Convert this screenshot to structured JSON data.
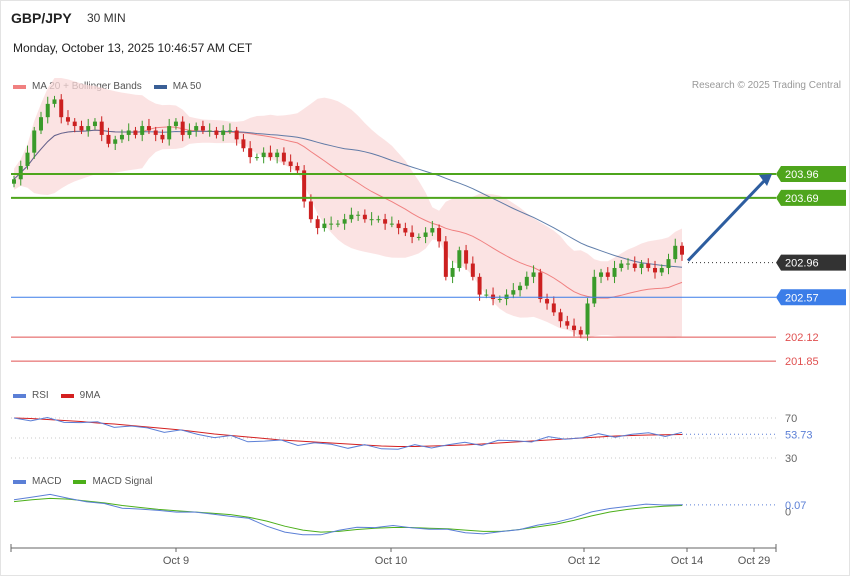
{
  "header": {
    "pair": "GBP/JPY",
    "timeframe": "30 MIN",
    "datetime": "Monday, October 13, 2025 10:46:57 AM CET",
    "credit": "Research © 2025 Trading Central"
  },
  "legends": {
    "main": [
      {
        "label": "MA 20 + Bollinger Bands",
        "color": "#f08080"
      },
      {
        "label": "MA 50",
        "color": "#3a5f96"
      }
    ],
    "rsi": [
      {
        "label": "RSI",
        "color": "#5b7fd6"
      },
      {
        "label": "9MA",
        "color": "#d42020"
      }
    ],
    "macd": [
      {
        "label": "MACD",
        "color": "#5b7fd6"
      },
      {
        "label": "MACD Signal",
        "color": "#4caf1a"
      }
    ]
  },
  "colors": {
    "resistance": "#4ea51c",
    "support": "#3b7de8",
    "red_level": "#e05050",
    "current": "#333333",
    "arrow": "#2d5d9f",
    "bull": "#3a9a2a",
    "bear": "#cc2020"
  },
  "chart_data": [
    {
      "type": "candlestick",
      "title": "GBP/JPY",
      "ylim": [
        201.75,
        204.85
      ],
      "levels": [
        {
          "value": 203.96,
          "label": "203.96",
          "kind": "resistance"
        },
        {
          "value": 203.69,
          "label": "203.69",
          "kind": "resistance"
        },
        {
          "value": 202.96,
          "label": "202.96",
          "kind": "current"
        },
        {
          "value": 202.57,
          "label": "202.57",
          "kind": "support"
        },
        {
          "value": 202.12,
          "label": "202.12",
          "kind": "level"
        },
        {
          "value": 201.85,
          "label": "201.85",
          "kind": "level"
        }
      ],
      "close": [
        203.9,
        204.05,
        204.2,
        204.45,
        204.6,
        204.75,
        204.8,
        204.6,
        204.55,
        204.5,
        204.45,
        204.5,
        204.55,
        204.4,
        204.3,
        204.35,
        204.4,
        204.45,
        204.4,
        204.5,
        204.45,
        204.4,
        204.35,
        204.5,
        204.55,
        204.4,
        204.45,
        204.5,
        204.45,
        204.45,
        204.4,
        204.45,
        204.45,
        204.35,
        204.25,
        204.15,
        204.15,
        204.2,
        204.15,
        204.2,
        204.1,
        204.05,
        204.0,
        203.65,
        203.45,
        203.35,
        203.4,
        203.4,
        203.4,
        203.45,
        203.5,
        203.5,
        203.45,
        203.45,
        203.45,
        203.4,
        203.4,
        203.35,
        203.3,
        203.25,
        203.25,
        203.3,
        203.35,
        203.2,
        202.8,
        202.9,
        203.1,
        202.95,
        202.8,
        202.6,
        202.6,
        202.55,
        202.55,
        202.6,
        202.65,
        202.7,
        202.8,
        202.85,
        202.55,
        202.5,
        202.4,
        202.3,
        202.25,
        202.2,
        202.15,
        202.5,
        202.8,
        202.85,
        202.8,
        202.9,
        202.95,
        202.95,
        202.9,
        202.95,
        202.9,
        202.85,
        202.9,
        203.0,
        203.15,
        203.05
      ],
      "xticks": [
        {
          "label": "Oct 9"
        },
        {
          "label": "Oct 10"
        },
        {
          "label": "Oct 12"
        },
        {
          "label": "Oct 14"
        },
        {
          "label": "Oct 29"
        }
      ],
      "target_arrow": {
        "from": 202.96,
        "to": 203.96
      }
    },
    {
      "type": "line",
      "title": "RSI",
      "ylim": [
        20,
        80
      ],
      "yticks": [
        "70",
        "30"
      ],
      "last_value": "53.73",
      "series": [
        {
          "name": "RSI",
          "values": [
            70,
            69,
            68,
            67,
            66,
            64,
            63,
            61,
            59,
            58,
            56,
            54,
            52,
            50,
            48,
            47,
            46,
            45,
            44,
            43,
            42,
            41,
            40,
            40,
            41,
            42,
            43,
            44,
            45,
            46,
            47,
            48,
            49,
            50,
            51,
            52,
            53,
            53,
            54,
            54,
            53.73
          ]
        },
        {
          "name": "9MA",
          "values": [
            70,
            69.5,
            68.5,
            67.5,
            66.5,
            65,
            64,
            62.5,
            61,
            59.5,
            58,
            56,
            54,
            52.5,
            51,
            49.5,
            48,
            47,
            46,
            45,
            44,
            43,
            42,
            41.5,
            41.5,
            42,
            42.5,
            43,
            44,
            45,
            46,
            47,
            48,
            49,
            50,
            51,
            52,
            52.5,
            53,
            53.3,
            53.5
          ]
        }
      ]
    },
    {
      "type": "line",
      "title": "MACD",
      "ylim": [
        -0.55,
        0.3
      ],
      "yticks": [
        "0"
      ],
      "last_value": "0.07",
      "series": [
        {
          "name": "MACD",
          "values": [
            0.15,
            0.2,
            0.22,
            0.18,
            0.12,
            0.08,
            0.03,
            0.0,
            -0.02,
            -0.03,
            -0.05,
            -0.07,
            -0.1,
            -0.15,
            -0.25,
            -0.35,
            -0.4,
            -0.38,
            -0.33,
            -0.28,
            -0.27,
            -0.26,
            -0.28,
            -0.3,
            -0.32,
            -0.35,
            -0.38,
            -0.35,
            -0.3,
            -0.25,
            -0.2,
            -0.12,
            -0.05,
            0.02,
            0.05,
            0.07,
            0.08,
            0.07
          ]
        },
        {
          "name": "MACD Signal",
          "values": [
            0.12,
            0.15,
            0.17,
            0.16,
            0.13,
            0.1,
            0.06,
            0.03,
            0.0,
            -0.02,
            -0.04,
            -0.06,
            -0.08,
            -0.12,
            -0.18,
            -0.26,
            -0.32,
            -0.35,
            -0.34,
            -0.31,
            -0.29,
            -0.28,
            -0.28,
            -0.29,
            -0.3,
            -0.32,
            -0.34,
            -0.34,
            -0.31,
            -0.27,
            -0.23,
            -0.17,
            -0.1,
            -0.04,
            0.0,
            0.03,
            0.05,
            0.06
          ]
        }
      ]
    }
  ]
}
